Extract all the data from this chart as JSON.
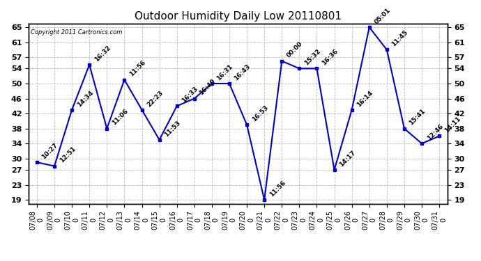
{
  "title": "Outdoor Humidity Daily Low 20110801",
  "copyright": "Copyright 2011 Cartronics.com",
  "dates": [
    "07/08",
    "07/09",
    "07/10",
    "07/11",
    "07/12",
    "07/13",
    "07/14",
    "07/15",
    "07/16",
    "07/17",
    "07/18",
    "07/19",
    "07/20",
    "07/21",
    "07/22",
    "07/23",
    "07/24",
    "07/25",
    "07/26",
    "07/27",
    "07/28",
    "07/29",
    "07/30",
    "07/31"
  ],
  "values": [
    29,
    28,
    43,
    55,
    38,
    51,
    43,
    35,
    44,
    46,
    50,
    50,
    39,
    19,
    56,
    54,
    54,
    27,
    43,
    65,
    59,
    38,
    34,
    36
  ],
  "times": [
    "10:27",
    "12:51",
    "14:34",
    "16:32",
    "11:06",
    "11:56",
    "22:23",
    "11:53",
    "16:33",
    "16:49",
    "16:31",
    "16:43",
    "16:53",
    "11:56",
    "00:00",
    "15:32",
    "16:36",
    "14:17",
    "16:14",
    "05:01",
    "11:45",
    "15:41",
    "12:46",
    "14:11"
  ],
  "line_color": "#0000CC",
  "marker_color": "#0000CC",
  "bg_color": "#FFFFFF",
  "grid_color": "#AAAAAA",
  "ylim_min": 18,
  "ylim_max": 66,
  "yticks": [
    19,
    23,
    27,
    30,
    34,
    38,
    42,
    46,
    50,
    54,
    57,
    61,
    65
  ],
  "title_fontsize": 11,
  "label_fontsize": 6.5,
  "tick_fontsize": 7,
  "ytick_fontsize": 8
}
